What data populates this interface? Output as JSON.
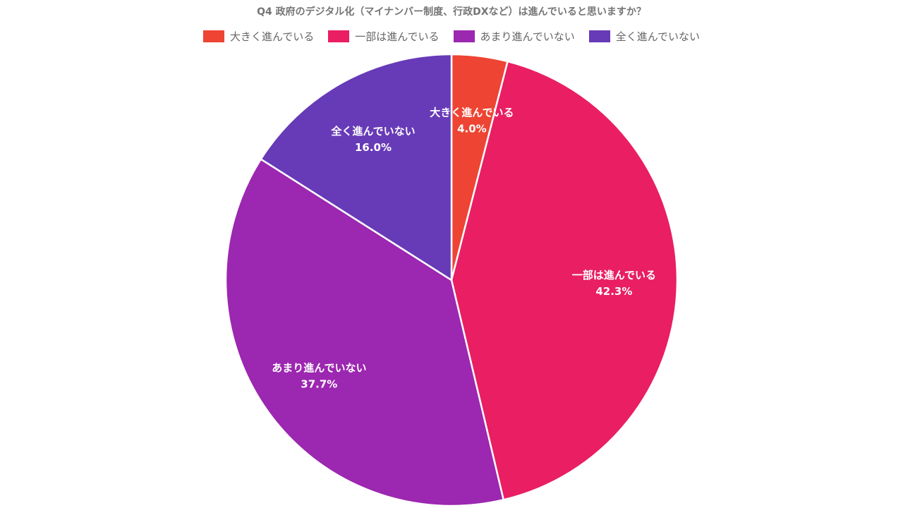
{
  "chart_data": {
    "type": "pie",
    "title": "Q4 政府のデジタル化（マイナンバー制度、行政DXなど）は進んでいると思いますか？",
    "legend_position": "top",
    "slices": [
      {
        "label": "大きく進んでいる",
        "value": 4.0,
        "value_label": "4.0%",
        "color": "#ee4433"
      },
      {
        "label": "一部は進んでいる",
        "value": 42.3,
        "value_label": "42.3%",
        "color": "#e91e63"
      },
      {
        "label": "あまり進んでいない",
        "value": 37.7,
        "value_label": "37.7%",
        "color": "#9c27b0"
      },
      {
        "label": "全く進んでいない",
        "value": 16.0,
        "value_label": "16.0%",
        "color": "#673ab7"
      }
    ]
  }
}
